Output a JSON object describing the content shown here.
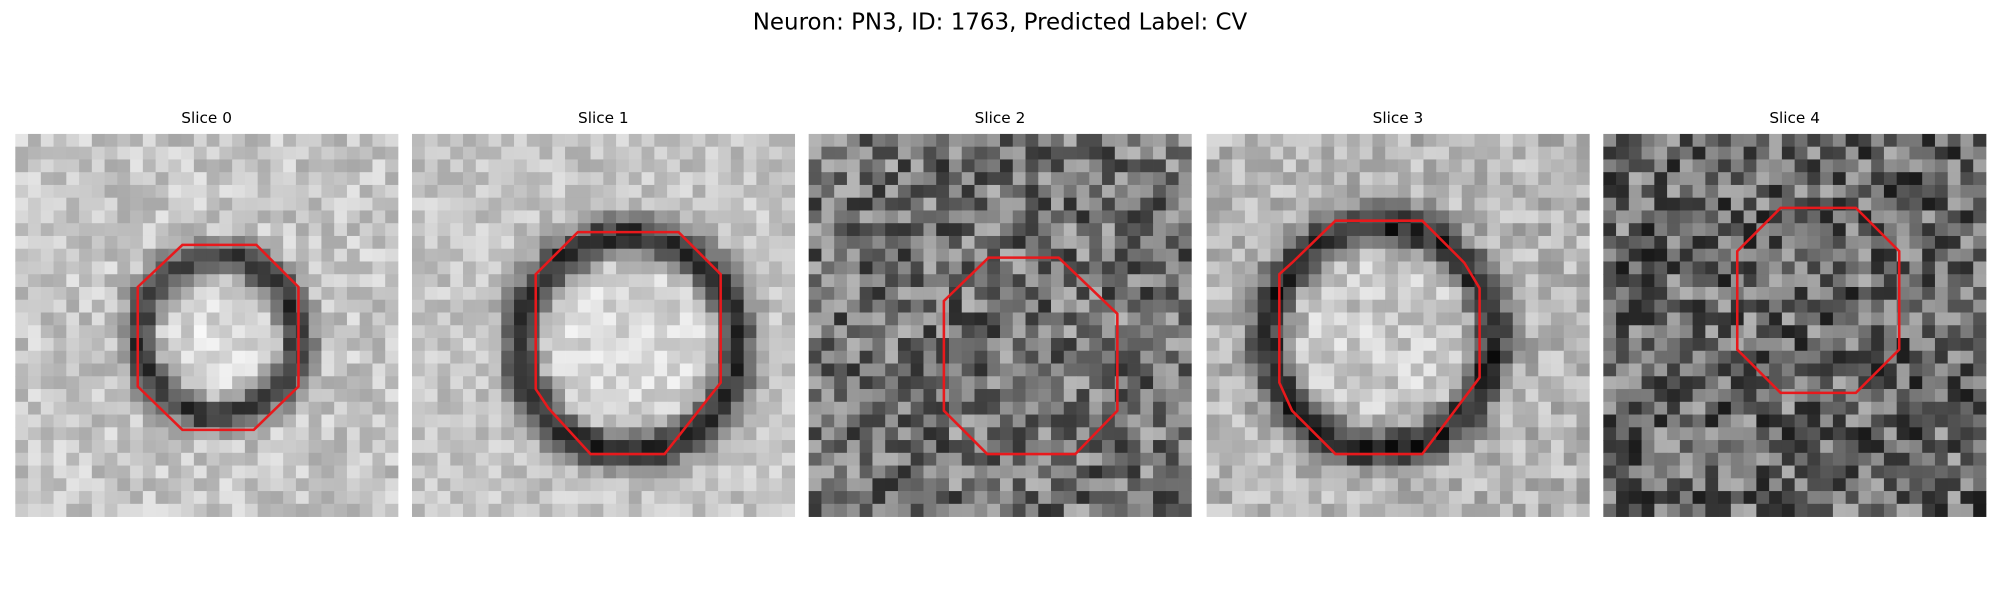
{
  "header": {
    "title": "Neuron: PN3, ID: 1763, Predicted Label: CV"
  },
  "panels": [
    {
      "title": "Slice 0"
    },
    {
      "title": "Slice 1"
    },
    {
      "title": "Slice 2"
    },
    {
      "title": "Slice 3"
    },
    {
      "title": "Slice 4"
    }
  ]
}
